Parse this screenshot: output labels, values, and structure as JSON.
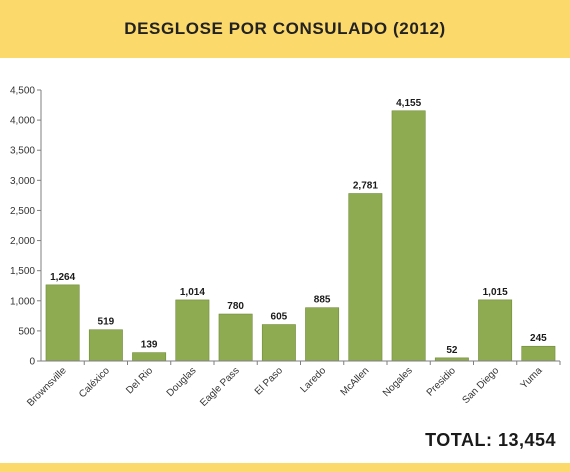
{
  "header": {
    "title": "DESGLOSE POR CONSULADO (2012)"
  },
  "colors": {
    "banner": "#fcd96b",
    "bar": "#8fab52",
    "bar_stroke": "#6f8a3a",
    "axis": "#7f7f7f"
  },
  "chart_data": {
    "type": "bar",
    "title": "",
    "xlabel": "",
    "ylabel": "",
    "ylim": [
      0,
      4500
    ],
    "yticks": [
      "0",
      "500",
      "1,000",
      "1,500",
      "2,000",
      "2,500",
      "3,000",
      "3,500",
      "4,000",
      "4,500"
    ],
    "ytick_values": [
      0,
      500,
      1000,
      1500,
      2000,
      2500,
      3000,
      3500,
      4000,
      4500
    ],
    "grid": false,
    "categories": [
      "Brownsville",
      "Caléxico",
      "Del Rio",
      "Douglas",
      "Eagle Pass",
      "El Paso",
      "Laredo",
      "McAllen",
      "Nogales",
      "Presidio",
      "San Diego",
      "Yuma"
    ],
    "values": [
      1264,
      519,
      139,
      1014,
      780,
      605,
      885,
      2781,
      4155,
      52,
      1015,
      245
    ],
    "value_labels": [
      "1,264",
      "519",
      "139",
      "1,014",
      "780",
      "605",
      "885",
      "2,781",
      "4,155",
      "52",
      "1,015",
      "245"
    ]
  },
  "footer": {
    "total": "TOTAL: 13,454"
  }
}
